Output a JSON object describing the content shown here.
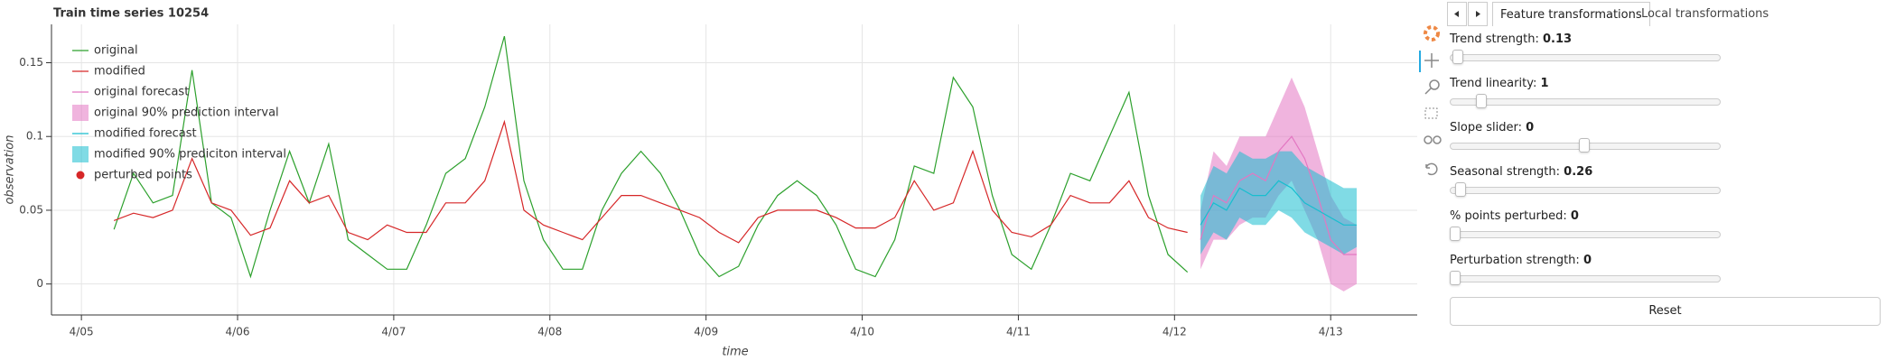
{
  "chart_data": {
    "type": "line",
    "title": "Train time series 10254",
    "x_label": "time",
    "y_label": "observation",
    "xlim": [
      -4.6,
      205.3
    ],
    "ylim": [
      -0.021,
      0.176
    ],
    "xticks": [
      {
        "value": 0,
        "label": "4/05"
      },
      {
        "value": 24,
        "label": "4/06"
      },
      {
        "value": 48,
        "label": "4/07"
      },
      {
        "value": 72,
        "label": "4/08"
      },
      {
        "value": 96,
        "label": "4/09"
      },
      {
        "value": 120,
        "label": "4/10"
      },
      {
        "value": 144,
        "label": "4/11"
      },
      {
        "value": 168,
        "label": "4/12"
      },
      {
        "value": 192,
        "label": "4/13"
      }
    ],
    "yticks": [
      0,
      0.05,
      0.1,
      0.15
    ],
    "grid": true,
    "legend": "top-left",
    "x": [
      5,
      8,
      11,
      14,
      17,
      20,
      23,
      26,
      29,
      32,
      35,
      38,
      41,
      44,
      47,
      50,
      53,
      56,
      59,
      62,
      65,
      68,
      71,
      74,
      77,
      80,
      83,
      86,
      89,
      92,
      95,
      98,
      101,
      104,
      107,
      110,
      113,
      116,
      119,
      122,
      125,
      128,
      131,
      134,
      137,
      140,
      143,
      146,
      149,
      152,
      155,
      158,
      161,
      164,
      167,
      170
    ],
    "series": [
      {
        "name": "original",
        "kind": "line",
        "color": "#2ca02c",
        "values": [
          0.037,
          0.075,
          0.055,
          0.06,
          0.145,
          0.055,
          0.045,
          0.005,
          0.05,
          0.09,
          0.055,
          0.095,
          0.03,
          0.02,
          0.01,
          0.01,
          0.04,
          0.075,
          0.085,
          0.12,
          0.168,
          0.07,
          0.03,
          0.01,
          0.01,
          0.05,
          0.075,
          0.09,
          0.075,
          0.05,
          0.02,
          0.005,
          0.012,
          0.04,
          0.06,
          0.07,
          0.06,
          0.04,
          0.01,
          0.005,
          0.03,
          0.08,
          0.075,
          0.14,
          0.12,
          0.06,
          0.02,
          0.01,
          0.04,
          0.075,
          0.07,
          0.1,
          0.13,
          0.06,
          0.02,
          0.008
        ]
      },
      {
        "name": "modified",
        "kind": "line",
        "color": "#d62728",
        "values": [
          0.043,
          0.048,
          0.045,
          0.05,
          0.085,
          0.055,
          0.05,
          0.033,
          0.038,
          0.07,
          0.055,
          0.06,
          0.035,
          0.03,
          0.04,
          0.035,
          0.035,
          0.055,
          0.055,
          0.07,
          0.11,
          0.05,
          0.04,
          0.035,
          0.03,
          0.045,
          0.06,
          0.06,
          0.055,
          0.05,
          0.045,
          0.035,
          0.028,
          0.045,
          0.05,
          0.05,
          0.05,
          0.045,
          0.038,
          0.038,
          0.045,
          0.07,
          0.05,
          0.055,
          0.09,
          0.05,
          0.035,
          0.032,
          0.04,
          0.06,
          0.055,
          0.055,
          0.07,
          0.045,
          0.038,
          0.035
        ]
      },
      {
        "name": "original forecast",
        "kind": "line",
        "color": "#e377c2",
        "x": [
          172,
          174,
          176,
          178,
          180,
          182,
          184,
          186,
          188,
          190,
          192,
          194,
          196
        ],
        "values": [
          0.03,
          0.06,
          0.055,
          0.07,
          0.075,
          0.07,
          0.09,
          0.1,
          0.085,
          0.06,
          0.03,
          0.02,
          0.02
        ]
      },
      {
        "name": "original 90% prediction interval",
        "kind": "band",
        "color": "#e377c2",
        "x": [
          172,
          174,
          176,
          178,
          180,
          182,
          184,
          186,
          188,
          190,
          192,
          194,
          196
        ],
        "lower": [
          0.01,
          0.03,
          0.03,
          0.04,
          0.045,
          0.045,
          0.06,
          0.07,
          0.05,
          0.03,
          0.0,
          -0.005,
          0.0
        ],
        "upper": [
          0.05,
          0.09,
          0.08,
          0.1,
          0.1,
          0.1,
          0.12,
          0.14,
          0.12,
          0.09,
          0.06,
          0.045,
          0.04
        ]
      },
      {
        "name": "modified forecast",
        "kind": "line",
        "color": "#17becf",
        "x": [
          172,
          174,
          176,
          178,
          180,
          182,
          184,
          186,
          188,
          190,
          192,
          194,
          196
        ],
        "values": [
          0.04,
          0.055,
          0.05,
          0.065,
          0.06,
          0.06,
          0.07,
          0.065,
          0.055,
          0.05,
          0.045,
          0.04,
          0.04
        ]
      },
      {
        "name": "modified 90% prediciton interval",
        "kind": "band",
        "color": "#17becf",
        "x": [
          172,
          174,
          176,
          178,
          180,
          182,
          184,
          186,
          188,
          190,
          192,
          194,
          196
        ],
        "lower": [
          0.02,
          0.035,
          0.03,
          0.045,
          0.04,
          0.04,
          0.05,
          0.045,
          0.035,
          0.03,
          0.025,
          0.02,
          0.025
        ],
        "upper": [
          0.06,
          0.08,
          0.075,
          0.09,
          0.085,
          0.085,
          0.09,
          0.09,
          0.08,
          0.075,
          0.07,
          0.065,
          0.065
        ]
      },
      {
        "name": "perturbed points",
        "kind": "scatter",
        "color": "#d62728",
        "values": []
      }
    ]
  },
  "panel": {
    "tabs": [
      "Feature transformations",
      "Local transformations"
    ],
    "sliders": [
      {
        "label": "Trend strength:",
        "value": 0.13
      },
      {
        "label": "Trend linearity:",
        "value": 1
      },
      {
        "label": "Slope slider:",
        "value": 0
      },
      {
        "label": "Seasonal strength:",
        "value": 0.26
      },
      {
        "label": "% points perturbed:",
        "value": 0
      },
      {
        "label": "Perturbation strength:",
        "value": 0
      }
    ],
    "reset": "Reset"
  }
}
